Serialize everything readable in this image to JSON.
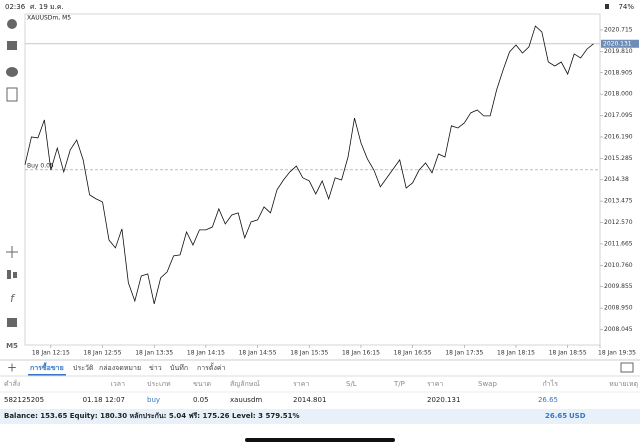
{
  "status_bar": {
    "time": "02:36",
    "date": "ศ. 19 ม.ค.",
    "battery": "74%"
  },
  "side_toolbar": {
    "label": "M5"
  },
  "chart_data": {
    "type": "line",
    "title": "XAUUSDm, M5",
    "color": "#111111",
    "values": [
      2015.01,
      2016.19,
      2016.15,
      2016.91,
      2014.79,
      2015.72,
      2014.71,
      2015.64,
      2016.06,
      2015.22,
      2013.74,
      2013.57,
      2013.44,
      2011.83,
      2011.5,
      2012.3,
      2010.02,
      2009.25,
      2010.31,
      2010.4,
      2009.13,
      2010.23,
      2010.48,
      2011.16,
      2011.2,
      2012.17,
      2011.62,
      2012.26,
      2012.26,
      2012.38,
      2013.15,
      2012.51,
      2012.89,
      2012.98,
      2011.92,
      2012.6,
      2012.68,
      2013.23,
      2012.98,
      2013.95,
      2014.37,
      2014.71,
      2014.96,
      2014.46,
      2014.33,
      2013.78,
      2014.33,
      2013.57,
      2014.46,
      2014.37,
      2015.34,
      2016.99,
      2015.94,
      2015.26,
      2014.79,
      2014.08,
      2014.46,
      2014.84,
      2015.22,
      2014.03,
      2014.25,
      2014.79,
      2015.09,
      2014.67,
      2015.47,
      2015.34,
      2016.66,
      2016.57,
      2016.78,
      2017.21,
      2017.33,
      2017.08,
      2017.08,
      2018.18,
      2019.02,
      2019.79,
      2020.08,
      2019.74,
      2020.0,
      2020.88,
      2020.63,
      2019.36,
      2019.19,
      2019.36,
      2018.85,
      2019.7,
      2019.53,
      2019.91,
      2020.13
    ],
    "xlim": [
      0,
      89
    ],
    "xticks": [
      {
        "value": 4,
        "label": "18 Jan 12:15"
      },
      {
        "value": 12,
        "label": "18 Jan 12:55"
      },
      {
        "value": 20,
        "label": "18 Jan 13:35"
      },
      {
        "value": 28,
        "label": "18 Jan 14:15"
      },
      {
        "value": 36,
        "label": "18 Jan 14:55"
      },
      {
        "value": 44,
        "label": "18 Jan 15:35"
      },
      {
        "value": 52,
        "label": "18 Jan 16:15"
      },
      {
        "value": 60,
        "label": "18 Jan 16:55"
      },
      {
        "value": 68,
        "label": "18 Jan 17:35"
      },
      {
        "value": 76,
        "label": "18 Jan 18:15"
      },
      {
        "value": 84,
        "label": "18 Jan 18:55"
      },
      {
        "value": 92,
        "label": "18 Jan 19:35"
      }
    ],
    "ylim": [
      2007.39,
      2021.39
    ],
    "yticks": [
      2020.715,
      {
        "value": 2019.81,
        "label": "2019.810"
      },
      2018.905,
      {
        "value": 2018,
        "label": "2018.000"
      },
      2017.095,
      {
        "value": 2016.19,
        "label": "2016.190"
      },
      2015.285,
      2014.38,
      2013.475,
      {
        "value": 2012.57,
        "label": "2012.570"
      },
      2011.665,
      {
        "value": 2010.76,
        "label": "2010.760"
      },
      2009.855,
      {
        "value": 2008.95,
        "label": "2008.950"
      },
      2008.045
    ],
    "grid": false,
    "current_price": 2020.131,
    "order_label": "Buy 0.05",
    "order_price": 2014.801
  },
  "tabs": [
    "การซื้อขาย",
    "ประวัติ",
    "กล่องจดหมาย",
    "ข่าว",
    "บันทึก",
    "การตั้งค่า"
  ],
  "table": {
    "headers": [
      "คำสั่ง",
      "เวลา",
      "ประเภท",
      "ขนาด",
      "สัญลักษณ์",
      "ราคา",
      "S/L",
      "T/P",
      "ราคา",
      "Swap",
      "กำไร",
      "หมายเหตุ"
    ],
    "rows": [
      {
        "order": "582125205",
        "time": "01.18 12:07",
        "type": "buy",
        "volume": "0.05",
        "symbol": "xauusdm",
        "price": "2014.801",
        "current_price": "2020.131",
        "profit": "26.65"
      }
    ],
    "summary": {
      "text": "Balance: 153.65 Equity: 180.30 หลักประกัน: 5.04 ฟรี: 175.26 Level: 3 579.51%",
      "profit": "26.65",
      "currency": "USD"
    }
  }
}
